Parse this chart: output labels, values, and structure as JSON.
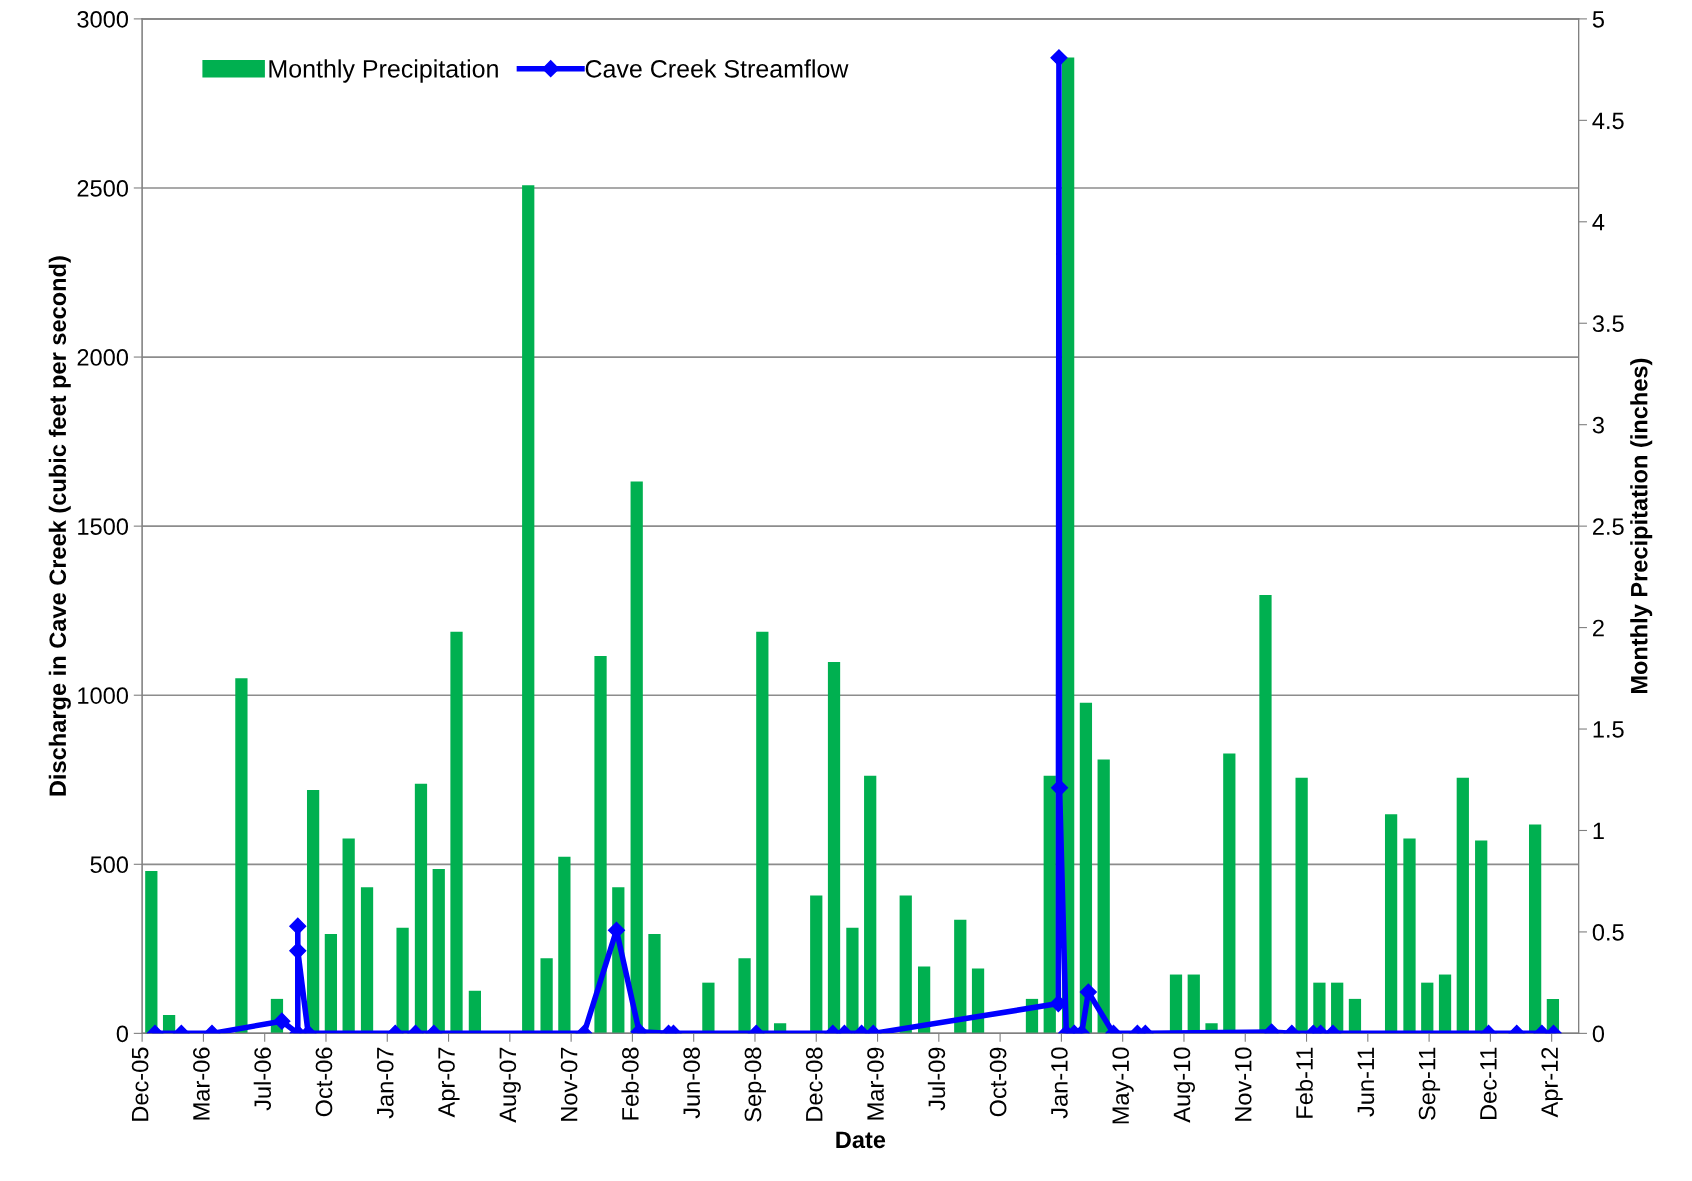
{
  "chart_data": {
    "type": "bar",
    "xlabel": "Date",
    "ylabel": "Discharge in Cave Creek (cubic feet per second)",
    "y2label": "Monthly Precipitation (inches)",
    "xlim": [
      "2005-12-15",
      "2012-05-16"
    ],
    "xticks": [
      {
        "value": "2005-12-15",
        "label": "Dec-05"
      },
      {
        "value": "2006-03-25",
        "label": "Mar-06"
      },
      {
        "value": "2006-07-03",
        "label": "Jul-06"
      },
      {
        "value": "2006-10-11",
        "label": "Oct-06"
      },
      {
        "value": "2007-01-19",
        "label": "Jan-07"
      },
      {
        "value": "2007-04-29",
        "label": "Apr-07"
      },
      {
        "value": "2007-08-07",
        "label": "Aug-07"
      },
      {
        "value": "2007-11-15",
        "label": "Nov-07"
      },
      {
        "value": "2008-02-23",
        "label": "Feb-08"
      },
      {
        "value": "2008-06-02",
        "label": "Jun-08"
      },
      {
        "value": "2008-09-10",
        "label": "Sep-08"
      },
      {
        "value": "2008-12-19",
        "label": "Dec-08"
      },
      {
        "value": "2009-03-29",
        "label": "Mar-09"
      },
      {
        "value": "2009-07-07",
        "label": "Jul-09"
      },
      {
        "value": "2009-10-15",
        "label": "Oct-09"
      },
      {
        "value": "2010-01-23",
        "label": "Jan-10"
      },
      {
        "value": "2010-05-03",
        "label": "May-10"
      },
      {
        "value": "2010-08-11",
        "label": "Aug-10"
      },
      {
        "value": "2010-11-19",
        "label": "Nov-10"
      },
      {
        "value": "2011-02-27",
        "label": "Feb-11"
      },
      {
        "value": "2011-06-07",
        "label": "Jun-11"
      },
      {
        "value": "2011-09-15",
        "label": "Sep-11"
      },
      {
        "value": "2011-12-24",
        "label": "Dec-11"
      },
      {
        "value": "2012-04-02",
        "label": "Apr-12"
      }
    ],
    "ylim": [
      0,
      3000
    ],
    "yticks": [
      0,
      500,
      1000,
      1500,
      2000,
      2500,
      3000
    ],
    "y2lim": [
      0,
      5
    ],
    "y2ticks": [
      0,
      0.5,
      1,
      1.5,
      2,
      2.5,
      3,
      3.5,
      4,
      4.5,
      5
    ],
    "grid": "y",
    "legend": "top left",
    "series": [
      {
        "name": "Monthly Precipitation",
        "axis": "y2",
        "color": "#00b050",
        "x": [
          "2005-12-30",
          "2006-01-28",
          "2006-05-26",
          "2006-07-23",
          "2006-09-20",
          "2006-10-19",
          "2006-11-17",
          "2006-12-17",
          "2007-02-13",
          "2007-03-15",
          "2007-04-13",
          "2007-05-12",
          "2007-06-11",
          "2007-09-06",
          "2007-10-06",
          "2007-11-04",
          "2008-01-02",
          "2008-01-31",
          "2008-03-01",
          "2008-03-30",
          "2008-06-26",
          "2008-08-24",
          "2008-09-22",
          "2008-10-21",
          "2008-12-19",
          "2009-01-17",
          "2009-02-16",
          "2009-03-17",
          "2009-05-14",
          "2009-06-13",
          "2009-08-11",
          "2009-09-09",
          "2009-12-06",
          "2010-01-04",
          "2010-02-03",
          "2010-03-04",
          "2010-04-02",
          "2010-07-29",
          "2010-08-27",
          "2010-09-25",
          "2010-10-24",
          "2010-12-22",
          "2011-02-19",
          "2011-03-20",
          "2011-04-18",
          "2011-05-17",
          "2011-07-15",
          "2011-08-14",
          "2011-09-12",
          "2011-10-11",
          "2011-11-09",
          "2011-12-09",
          "2012-03-06",
          "2012-04-04"
        ],
        "values": [
          0.8,
          0.09,
          1.75,
          0.17,
          1.2,
          0.49,
          0.96,
          0.72,
          0.52,
          1.23,
          0.81,
          1.98,
          0.21,
          4.18,
          0.37,
          0.87,
          1.86,
          0.72,
          2.72,
          0.49,
          0.25,
          0.37,
          1.98,
          0.05,
          0.68,
          1.83,
          0.52,
          1.27,
          0.68,
          0.33,
          0.56,
          0.32,
          0.17,
          1.27,
          4.81,
          1.63,
          1.35,
          0.29,
          0.29,
          0.05,
          1.38,
          2.16,
          1.26,
          0.25,
          0.25,
          0.17,
          1.08,
          0.96,
          0.25,
          0.29,
          1.26,
          0.95,
          1.03,
          0.17
        ]
      },
      {
        "name": "Cave Creek Streamflow",
        "type": "line",
        "axis": "y",
        "color": "#0000ff",
        "marker": "diamond",
        "line_style": "solid",
        "x": [
          "2006-01-05",
          "2006-02-17",
          "2006-04-08",
          "2006-07-31",
          "2006-08-26",
          "2006-08-26",
          "2006-08-26",
          "2006-09-12",
          "2007-02-01",
          "2007-03-06",
          "2007-04-05",
          "2007-12-06",
          "2008-01-28",
          "2008-03-05",
          "2008-04-22",
          "2008-04-30",
          "2008-09-12",
          "2009-01-15",
          "2009-02-03",
          "2009-03-03",
          "2009-03-22",
          "2010-01-18",
          "2010-01-19",
          "2010-01-20",
          "2010-01-31",
          "2010-02-13",
          "2010-02-25",
          "2010-03-08",
          "2010-04-18",
          "2010-05-27",
          "2010-06-09",
          "2011-01-01",
          "2011-02-03",
          "2011-03-10",
          "2011-03-22",
          "2011-04-11",
          "2011-12-21",
          "2012-02-05",
          "2012-03-17",
          "2012-04-05"
        ],
        "values": [
          0,
          0,
          0,
          36,
          0,
          317,
          244,
          0,
          0,
          0,
          0,
          0,
          305,
          5,
          0,
          0,
          0,
          0,
          0,
          0,
          0,
          88,
          2885,
          726,
          0,
          0,
          0,
          122,
          0,
          0,
          0,
          4,
          0,
          0,
          0,
          0,
          0,
          0,
          0,
          0
        ]
      }
    ]
  }
}
